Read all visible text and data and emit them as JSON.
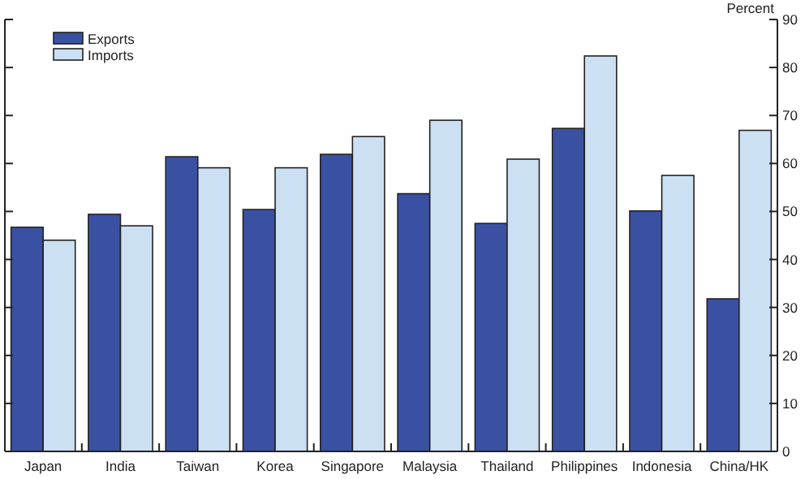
{
  "chart_data": {
    "type": "bar",
    "ylabel": "Percent",
    "categories": [
      "Japan",
      "India",
      "Taiwan",
      "Korea",
      "Singapore",
      "Malaysia",
      "Thailand",
      "Philippines",
      "Indonesia",
      "China/HK"
    ],
    "series": [
      {
        "name": "Exports",
        "color": "#3a51a3",
        "values": [
          46.7,
          49.4,
          61.4,
          50.4,
          61.9,
          53.7,
          47.5,
          67.3,
          50.1,
          31.8
        ]
      },
      {
        "name": "Imports",
        "color": "#cce0f4",
        "values": [
          44.0,
          47.0,
          59.1,
          59.1,
          65.6,
          69.0,
          60.9,
          82.4,
          57.5,
          66.9
        ]
      }
    ],
    "ylim": [
      0,
      90
    ],
    "yticks": [
      0,
      10,
      20,
      30,
      40,
      50,
      60,
      70,
      80,
      90
    ],
    "legend": "top left"
  }
}
